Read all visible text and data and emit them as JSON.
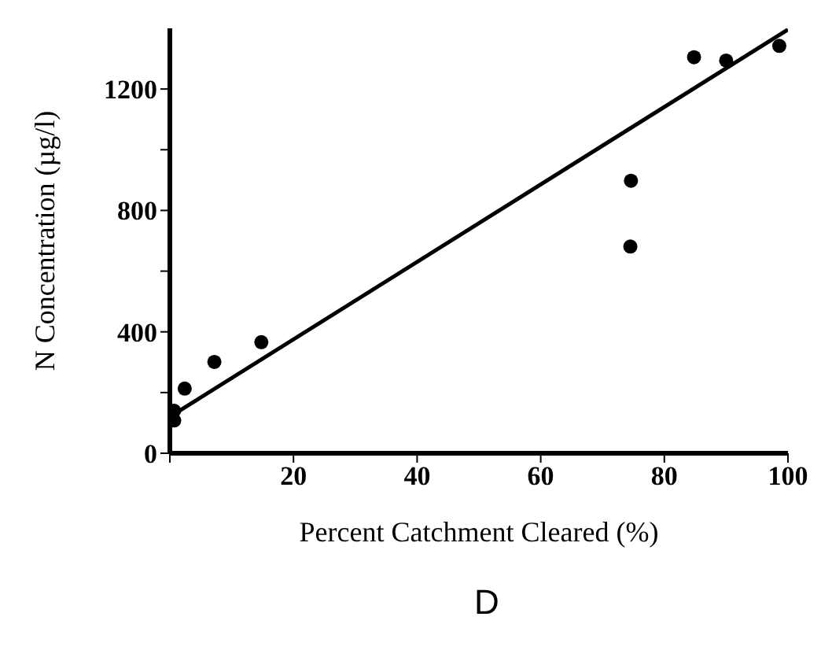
{
  "chart_data": {
    "type": "scatter",
    "xlabel": "Percent Catchment  Cleared (%)",
    "ylabel": "N Concentration (µg/l)",
    "annotations": [
      "D"
    ],
    "xlim": [
      0,
      100
    ],
    "xticks": [
      {
        "value": 0,
        "label": null
      },
      20,
      40,
      60,
      80,
      100
    ],
    "ylim": [
      0,
      1400
    ],
    "yticks": [
      0,
      {
        "value": 200,
        "label": null
      },
      400,
      {
        "value": 600,
        "label": null
      },
      800,
      {
        "value": 1000,
        "label": null
      },
      1200
    ],
    "marker": "circle",
    "series": [
      {
        "color": "#000000",
        "x": [
          0.7,
          0.7,
          2.4,
          7.2,
          14.8,
          74.5,
          74.6,
          84.8,
          90.0,
          98.6
        ],
        "values": [
          108,
          140,
          213,
          301,
          366,
          681,
          898,
          1305,
          1294,
          1342
        ]
      },
      {
        "type": "line",
        "color": "#000000",
        "x": [
          0,
          100
        ],
        "values": [
          120,
          1396
        ],
        "marker": "none",
        "line_style": "solid"
      }
    ]
  }
}
